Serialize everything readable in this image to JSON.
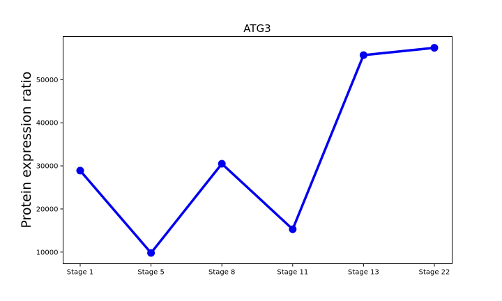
{
  "chart_data": {
    "type": "line",
    "title": "ATG3",
    "xlabel": "",
    "ylabel": "Protein expression ratio",
    "categories": [
      "Stage 1",
      "Stage 5",
      "Stage 8",
      "Stage 11",
      "Stage 13",
      "Stage 22"
    ],
    "series": [
      {
        "values": [
          28900,
          9800,
          30500,
          15300,
          55700,
          57400
        ]
      }
    ],
    "ylim": [
      7300,
      60000
    ],
    "yticks": [
      10000,
      20000,
      30000,
      40000,
      50000
    ],
    "grid": false,
    "legend": "none",
    "line_color": "#0000ee"
  }
}
